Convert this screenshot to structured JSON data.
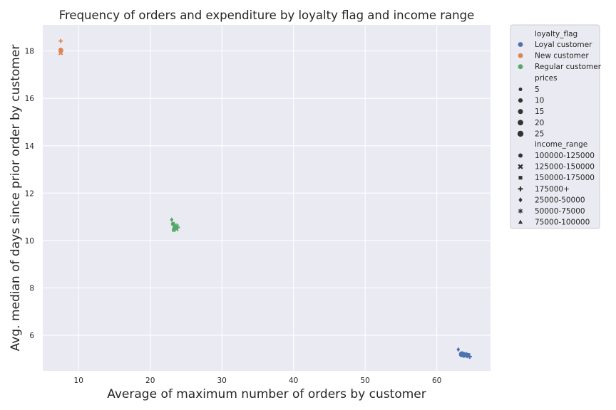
{
  "chart_data": {
    "type": "scatter",
    "title": "Frequency of orders and expenditure by loyalty flag and income range",
    "xlabel": "Average of maximum number of orders by customer",
    "ylabel": "Avg. median of days since prior order by customer",
    "xlim": [
      5,
      67.5
    ],
    "ylim": [
      4.5,
      19.1
    ],
    "xticks": [
      10,
      20,
      30,
      40,
      50,
      60
    ],
    "yticks": [
      6,
      8,
      10,
      12,
      14,
      16,
      18
    ],
    "grid": true,
    "legend_position": "outside-right",
    "legend": {
      "hue_title": "loyalty_flag",
      "hue_entries": [
        {
          "name": "Loyal customer",
          "color": "#4c72b0"
        },
        {
          "name": "New customer",
          "color": "#dd8452"
        },
        {
          "name": "Regular customer",
          "color": "#55a868"
        }
      ],
      "size_title": "prices",
      "size_entries": [
        "5",
        "10",
        "15",
        "20",
        "25"
      ],
      "style_title": "income_range",
      "style_entries": [
        {
          "name": "100000-125000",
          "marker": "circle"
        },
        {
          "name": "125000-150000",
          "marker": "x"
        },
        {
          "name": "150000-175000",
          "marker": "square"
        },
        {
          "name": "175000+",
          "marker": "plus"
        },
        {
          "name": "25000-50000",
          "marker": "diamond"
        },
        {
          "name": "50000-75000",
          "marker": "star"
        },
        {
          "name": "75000-100000",
          "marker": "triangle"
        }
      ]
    },
    "series": [
      {
        "name": "Loyal customer",
        "color": "#4c72b0",
        "points": [
          {
            "x": 63.0,
            "y": 5.4,
            "marker": "diamond",
            "prices": 7
          },
          {
            "x": 63.5,
            "y": 5.2,
            "marker": "circle",
            "prices": 25
          },
          {
            "x": 63.8,
            "y": 5.18,
            "marker": "circle",
            "prices": 20
          },
          {
            "x": 64.0,
            "y": 5.15,
            "marker": "x",
            "prices": 10
          },
          {
            "x": 64.2,
            "y": 5.2,
            "marker": "triangle",
            "prices": 10
          },
          {
            "x": 64.4,
            "y": 5.17,
            "marker": "square",
            "prices": 10
          },
          {
            "x": 64.6,
            "y": 5.1,
            "marker": "plus",
            "prices": 8
          },
          {
            "x": 64.3,
            "y": 5.13,
            "marker": "star",
            "prices": 8
          }
        ]
      },
      {
        "name": "New customer",
        "color": "#dd8452",
        "points": [
          {
            "x": 7.5,
            "y": 18.42,
            "marker": "plus",
            "prices": 5
          },
          {
            "x": 7.5,
            "y": 18.05,
            "marker": "circle",
            "prices": 10
          },
          {
            "x": 7.5,
            "y": 18.0,
            "marker": "triangle",
            "prices": 8
          },
          {
            "x": 7.5,
            "y": 17.95,
            "marker": "diamond",
            "prices": 7
          },
          {
            "x": 7.5,
            "y": 17.92,
            "marker": "x",
            "prices": 7
          },
          {
            "x": 7.6,
            "y": 18.02,
            "marker": "star",
            "prices": 7
          }
        ]
      },
      {
        "name": "Regular customer",
        "color": "#55a868",
        "points": [
          {
            "x": 23.0,
            "y": 10.88,
            "marker": "diamond",
            "prices": 7
          },
          {
            "x": 23.2,
            "y": 10.7,
            "marker": "circle",
            "prices": 10
          },
          {
            "x": 23.4,
            "y": 10.6,
            "marker": "triangle",
            "prices": 10
          },
          {
            "x": 23.5,
            "y": 10.55,
            "marker": "circle",
            "prices": 15
          },
          {
            "x": 23.6,
            "y": 10.5,
            "marker": "x",
            "prices": 10
          },
          {
            "x": 23.8,
            "y": 10.55,
            "marker": "plus",
            "prices": 10
          },
          {
            "x": 23.3,
            "y": 10.45,
            "marker": "square",
            "prices": 10
          },
          {
            "x": 23.7,
            "y": 10.62,
            "marker": "star",
            "prices": 10
          }
        ]
      }
    ]
  }
}
